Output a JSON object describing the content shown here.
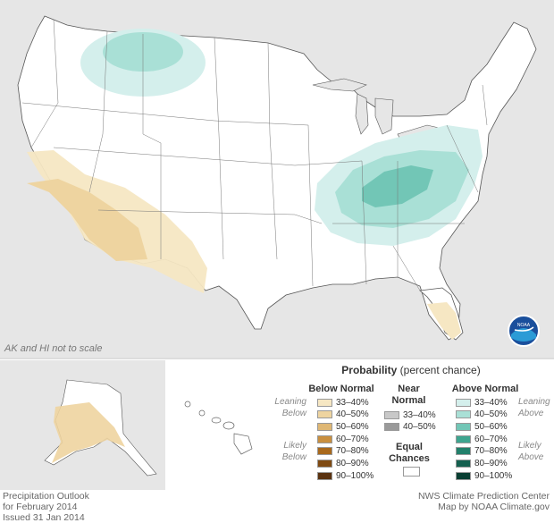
{
  "note": "AK and HI not to scale",
  "legend": {
    "title_bold": "Probability",
    "title_rest": " (percent chance)",
    "below_normal": "Below Normal",
    "near_normal_1": "Near",
    "near_normal_2": "Normal",
    "above_normal": "Above Normal",
    "equal_1": "Equal",
    "equal_2": "Chances",
    "leaning_below_1": "Leaning",
    "leaning_below_2": "Below",
    "likely_below_1": "Likely",
    "likely_below_2": "Below",
    "leaning_above_1": "Leaning",
    "leaning_above_2": "Above",
    "likely_above_1": "Likely",
    "likely_above_2": "Above",
    "below_bins": [
      {
        "label": "33–40%",
        "color": "#f6e7c3"
      },
      {
        "label": "40–50%",
        "color": "#eed4a0"
      },
      {
        "label": "50–60%",
        "color": "#dfb774"
      },
      {
        "label": "60–70%",
        "color": "#c98f3f"
      },
      {
        "label": "70–80%",
        "color": "#a9691c"
      },
      {
        "label": "80–90%",
        "color": "#7f4a12"
      },
      {
        "label": "90–100%",
        "color": "#5a3210"
      }
    ],
    "near_bins": [
      {
        "label": "33–40%",
        "color": "#c8c8c8"
      },
      {
        "label": "40–50%",
        "color": "#9a9a9a"
      }
    ],
    "above_bins": [
      {
        "label": "33–40%",
        "color": "#d4efec"
      },
      {
        "label": "40–50%",
        "color": "#a9e0d6"
      },
      {
        "label": "50–60%",
        "color": "#72c6b6"
      },
      {
        "label": "60–70%",
        "color": "#3ea58f"
      },
      {
        "label": "70–80%",
        "color": "#22806b"
      },
      {
        "label": "80–90%",
        "color": "#14604f"
      },
      {
        "label": "90–100%",
        "color": "#0a3f33"
      }
    ]
  },
  "footer": {
    "left_1": "Precipitation Outlook",
    "left_2": "for February 2014",
    "left_3": "Issued 31 Jan 2014",
    "right_1": "NWS Climate Prediction Center",
    "right_2": "Map by NOAA Climate.gov"
  },
  "logo_text": "NOAA",
  "colors": {
    "land": "#ffffff",
    "outside": "#e6e6e6",
    "border": "#555555",
    "below_33_40": "#f6e7c3",
    "below_40_50": "#eed4a0",
    "above_33_40": "#d4efec",
    "above_40_50": "#a9e0d6",
    "above_50_60": "#72c6b6"
  }
}
